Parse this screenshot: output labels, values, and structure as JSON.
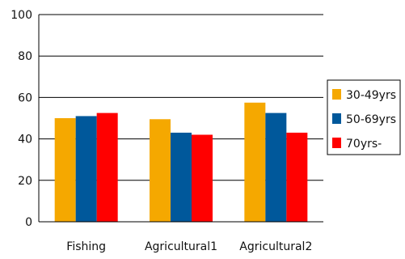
{
  "chart_data": {
    "type": "bar",
    "categories": [
      "Fishing",
      "Agricultural1",
      "Agricultural2"
    ],
    "series": [
      {
        "name": "30-49yrs",
        "color": "#F5A800",
        "values": [
          50,
          49.5,
          57.5
        ]
      },
      {
        "name": "50-69yrs",
        "color": "#00589B",
        "values": [
          51,
          43,
          52.5
        ]
      },
      {
        "name": "70yrs-",
        "color": "#FF0000",
        "values": [
          52.5,
          42,
          43
        ]
      }
    ],
    "yticks": [
      "0",
      "20",
      "40",
      "60",
      "80",
      "100"
    ],
    "ylim": [
      0,
      100
    ],
    "grid": true,
    "legend_position": "right"
  }
}
